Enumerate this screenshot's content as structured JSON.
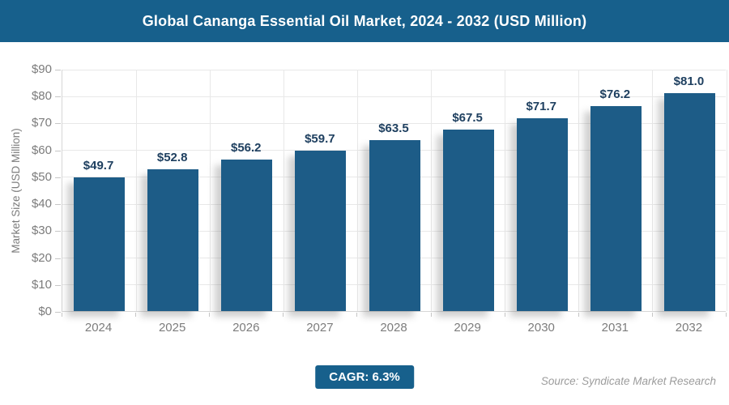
{
  "header": {
    "title": "Global Cananga Essential Oil Market, 2024 - 2032 (USD Million)"
  },
  "chart_data": {
    "type": "bar",
    "title": "Global Cananga Essential Oil Market, 2024 - 2032 (USD Million)",
    "categories": [
      "2024",
      "2025",
      "2026",
      "2027",
      "2028",
      "2029",
      "2030",
      "2031",
      "2032"
    ],
    "values": [
      49.7,
      52.8,
      56.2,
      59.7,
      63.5,
      67.5,
      71.7,
      76.2,
      81.0
    ],
    "value_labels": [
      "$49.7",
      "$52.8",
      "$56.2",
      "$59.7",
      "$63.5",
      "$67.5",
      "$71.7",
      "$76.2",
      "$81.0"
    ],
    "xlabel": "",
    "ylabel": "Market Size (USD Million)",
    "ylim": [
      0,
      90
    ],
    "ytick_interval": 10,
    "ytick_labels": [
      "$0",
      "$10",
      "$20",
      "$30",
      "$40",
      "$50",
      "$60",
      "$70",
      "$80",
      "$90"
    ],
    "grid": true,
    "legend": "none",
    "bar_color": "#1d5c87"
  },
  "footer": {
    "cagr_label": "CAGR: 6.3%",
    "source": "Source: Syndicate Market Research"
  },
  "colors": {
    "header_bg": "#17608c",
    "bar_fill": "#1d5c87",
    "value_label_text": "#1f4060",
    "axis_text": "#7c7c7c",
    "gridline": "#e8e8e8",
    "source_text": "#9c9c9c",
    "badge_bg": "#17608c",
    "title_text": "#ffffff"
  }
}
